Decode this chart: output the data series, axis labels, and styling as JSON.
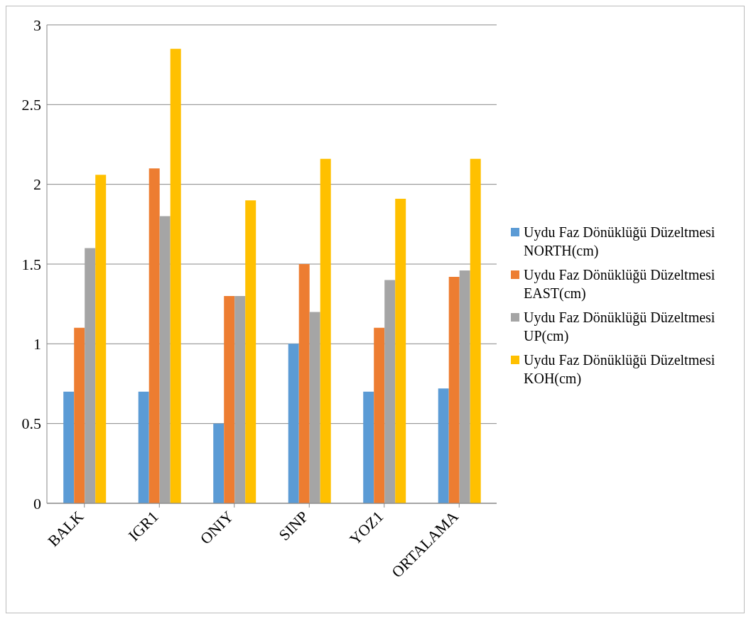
{
  "chart_data": {
    "type": "bar",
    "categories": [
      "BALK",
      "IGR1",
      "ONIY",
      "SINP",
      "YOZ1",
      "ORTALAMA"
    ],
    "series": [
      {
        "name": "Uydu Faz Dönüklüğü Düzeltmesi NORTH(cm)",
        "color": "#5b9bd5",
        "values": [
          0.7,
          0.7,
          0.5,
          1.0,
          0.7,
          0.72
        ]
      },
      {
        "name": "Uydu Faz Dönüklüğü Düzeltmesi EAST(cm)",
        "color": "#ed7d31",
        "values": [
          1.1,
          2.1,
          1.3,
          1.5,
          1.1,
          1.42
        ]
      },
      {
        "name": "Uydu Faz Dönüklüğü Düzeltmesi UP(cm)",
        "color": "#a5a5a5",
        "values": [
          1.6,
          1.8,
          1.3,
          1.2,
          1.4,
          1.46
        ]
      },
      {
        "name": "Uydu Faz Dönüklüğü Düzeltmesi KOH(cm)",
        "color": "#ffc000",
        "values": [
          2.06,
          2.85,
          1.9,
          2.16,
          1.91,
          2.16
        ]
      }
    ],
    "ylim": [
      0,
      3
    ],
    "yticks": [
      0,
      0.5,
      1,
      1.5,
      2,
      2.5,
      3
    ],
    "grid": "y",
    "legend": "right"
  }
}
